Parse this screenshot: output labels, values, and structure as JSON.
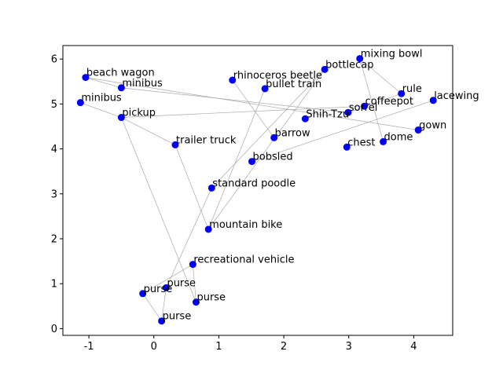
{
  "chart_data": {
    "type": "scatter",
    "title": "",
    "xlabel": "",
    "ylabel": "",
    "xlim": [
      -1.4,
      4.6
    ],
    "ylim": [
      -0.15,
      6.3
    ],
    "xticks": [
      -1,
      0,
      1,
      2,
      3,
      4
    ],
    "yticks": [
      0,
      1,
      2,
      3,
      4,
      5,
      6
    ],
    "grid": false,
    "point_color": "#0000ff",
    "edge_color": "#aaaaaa",
    "points": [
      {
        "label": "mixing bowl",
        "x": 3.17,
        "y": 6.01
      },
      {
        "label": "bottlecap",
        "x": 2.63,
        "y": 5.77
      },
      {
        "label": "beach wagon",
        "x": -1.05,
        "y": 5.59
      },
      {
        "label": "rhinoceros beetle",
        "x": 1.21,
        "y": 5.53
      },
      {
        "label": "minibus",
        "x": -0.5,
        "y": 5.36
      },
      {
        "label": "bullet train",
        "x": 1.71,
        "y": 5.34
      },
      {
        "label": "rule",
        "x": 3.81,
        "y": 5.23
      },
      {
        "label": "lacewing",
        "x": 4.3,
        "y": 5.08
      },
      {
        "label": "minibus",
        "x": -1.13,
        "y": 5.03
      },
      {
        "label": "coffeepot",
        "x": 3.24,
        "y": 4.95
      },
      {
        "label": "sorrel",
        "x": 2.99,
        "y": 4.81
      },
      {
        "label": "pickup",
        "x": -0.5,
        "y": 4.7
      },
      {
        "label": "Shih-Tzu",
        "x": 2.33,
        "y": 4.67
      },
      {
        "label": "gown",
        "x": 4.07,
        "y": 4.42
      },
      {
        "label": "barrow",
        "x": 1.85,
        "y": 4.25
      },
      {
        "label": "dome",
        "x": 3.53,
        "y": 4.16
      },
      {
        "label": "trailer truck",
        "x": 0.33,
        "y": 4.09
      },
      {
        "label": "chest",
        "x": 2.97,
        "y": 4.04
      },
      {
        "label": "bobsled",
        "x": 1.51,
        "y": 3.72
      },
      {
        "label": "standard poodle",
        "x": 0.89,
        "y": 3.13
      },
      {
        "label": "mountain bike",
        "x": 0.84,
        "y": 2.21
      },
      {
        "label": "recreational vehicle",
        "x": 0.6,
        "y": 1.43
      },
      {
        "label": "purse",
        "x": 0.19,
        "y": 0.91
      },
      {
        "label": "purse",
        "x": -0.17,
        "y": 0.78
      },
      {
        "label": "purse",
        "x": 0.65,
        "y": 0.59
      },
      {
        "label": "purse",
        "x": 0.12,
        "y": 0.17
      }
    ],
    "edges": [
      [
        2,
        13
      ],
      [
        2,
        4
      ],
      [
        4,
        10
      ],
      [
        8,
        11
      ],
      [
        11,
        16
      ],
      [
        16,
        20
      ],
      [
        11,
        24
      ],
      [
        20,
        5
      ],
      [
        20,
        1
      ],
      [
        19,
        1
      ],
      [
        3,
        14
      ],
      [
        0,
        15
      ],
      [
        0,
        6
      ],
      [
        6,
        10
      ],
      [
        11,
        9
      ],
      [
        18,
        7
      ],
      [
        21,
        24
      ],
      [
        21,
        23
      ],
      [
        23,
        25
      ],
      [
        25,
        22
      ],
      [
        22,
        19
      ]
    ]
  }
}
